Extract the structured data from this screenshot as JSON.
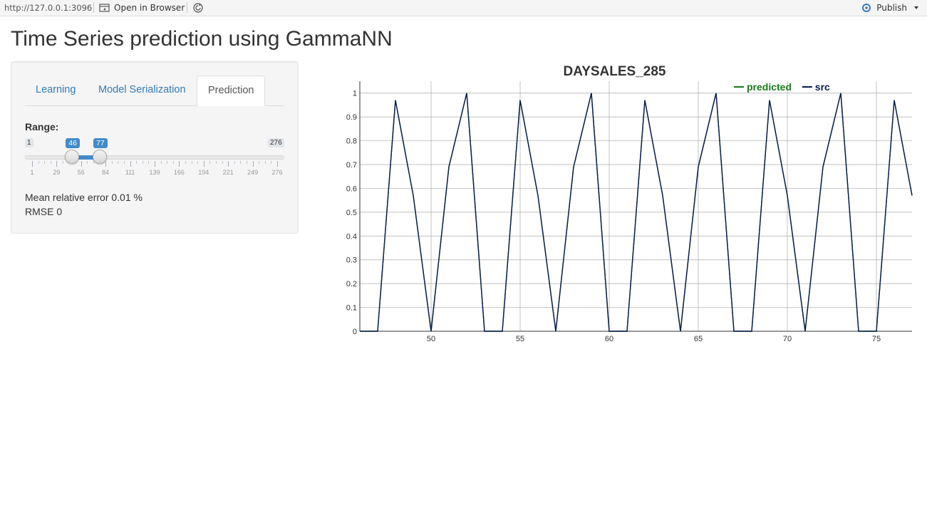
{
  "topbar": {
    "url": "http://127.0.0.1:3096",
    "open_in_browser": "Open in Browser",
    "publish": "Publish"
  },
  "page": {
    "title": "Time Series prediction using GammaNN"
  },
  "tabs": [
    {
      "label": "Learning"
    },
    {
      "label": "Model Serialization"
    },
    {
      "label": "Prediction"
    }
  ],
  "active_tab": "Prediction",
  "range": {
    "label": "Range:",
    "min": "1",
    "max": "276",
    "from": "46",
    "to": "77",
    "min_value": 1,
    "max_value": 276,
    "from_value": 46,
    "to_value": 77,
    "grid_labels": [
      "1",
      "29",
      "56",
      "84",
      "111",
      "139",
      "166",
      "194",
      "221",
      "249",
      "276"
    ]
  },
  "metrics": {
    "mean_relative_error": "Mean relative error 0.01 %",
    "rmse": "RMSE 0"
  },
  "colors": {
    "accent": "#428bca",
    "predicted": "#1a7a1a",
    "src": "#0b1a4f"
  },
  "chart_data": {
    "type": "line",
    "title": "DAYSALES_285",
    "legend_position": "top-right",
    "xlim": [
      46,
      77
    ],
    "ylim": [
      0,
      1.05
    ],
    "x_ticks": [
      50,
      55,
      60,
      65,
      70,
      75
    ],
    "y_ticks": [
      0,
      0.1,
      0.2,
      0.3,
      0.4,
      0.5,
      0.6,
      0.7,
      0.8,
      0.9,
      1
    ],
    "grid": true,
    "series": [
      {
        "name": "predicted",
        "x": [
          46,
          47,
          48,
          49,
          50,
          51,
          52,
          53,
          54,
          55,
          56,
          57,
          58,
          59,
          60,
          61,
          62,
          63,
          64,
          65,
          66,
          67,
          68,
          69,
          70,
          71,
          72,
          73,
          74,
          75,
          76,
          77
        ],
        "values": [
          0,
          0,
          0.97,
          0.57,
          0,
          0.69,
          1,
          0,
          0,
          0.97,
          0.57,
          0,
          0.69,
          1,
          0,
          0,
          0.97,
          0.57,
          0,
          0.69,
          1,
          0,
          0,
          0.97,
          0.57,
          0,
          0.69,
          1,
          0,
          0,
          0.97,
          0.57
        ]
      },
      {
        "name": "src",
        "x": [
          46,
          47,
          48,
          49,
          50,
          51,
          52,
          53,
          54,
          55,
          56,
          57,
          58,
          59,
          60,
          61,
          62,
          63,
          64,
          65,
          66,
          67,
          68,
          69,
          70,
          71,
          72,
          73,
          74,
          75,
          76,
          77
        ],
        "values": [
          0,
          0,
          0.97,
          0.57,
          0,
          0.69,
          1,
          0,
          0,
          0.97,
          0.57,
          0,
          0.69,
          1,
          0,
          0,
          0.97,
          0.57,
          0,
          0.69,
          1,
          0,
          0,
          0.97,
          0.57,
          0,
          0.69,
          1,
          0,
          0,
          0.97,
          0.57
        ]
      }
    ]
  }
}
